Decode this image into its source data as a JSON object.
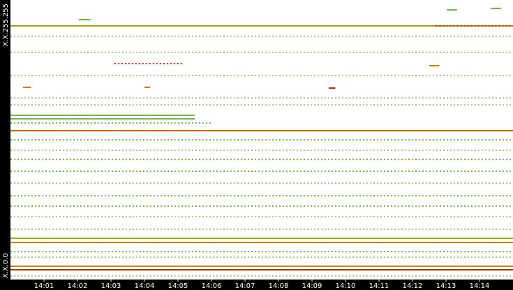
{
  "chart_data": {
    "type": "segments",
    "xlim": [
      0,
      15
    ],
    "xticks": [
      {
        "value": 1,
        "label": "14:01"
      },
      {
        "value": 2,
        "label": "14:02"
      },
      {
        "value": 3,
        "label": "14:03"
      },
      {
        "value": 4,
        "label": "14:04"
      },
      {
        "value": 5,
        "label": "14:05"
      },
      {
        "value": 6,
        "label": "14:06"
      },
      {
        "value": 7,
        "label": "14:07"
      },
      {
        "value": 8,
        "label": "14:08"
      },
      {
        "value": 9,
        "label": "14:09"
      },
      {
        "value": 10,
        "label": "14:10"
      },
      {
        "value": 11,
        "label": "14:11"
      },
      {
        "value": 12,
        "label": "14:12"
      },
      {
        "value": 13,
        "label": "14:13"
      },
      {
        "value": 14,
        "label": "14:14"
      }
    ],
    "ylim": [
      0,
      65535
    ],
    "yticks": [
      {
        "value": 0,
        "label": "X.X.0.0"
      },
      {
        "value": 65535,
        "label": "X.X.255.255"
      }
    ],
    "segments": [
      {
        "y": 59473,
        "x": [
          0,
          15
        ],
        "color": "#a8a000",
        "style": "solid"
      },
      {
        "y": 59473,
        "x": [
          12.7,
          15
        ],
        "color": "#cc2200",
        "style": "dotted"
      },
      {
        "y": 50626,
        "x": [
          3.1,
          5.15
        ],
        "color": "#cc2200",
        "style": "dotted"
      },
      {
        "y": 34897,
        "x": [
          0,
          15
        ],
        "color": "#c86a00",
        "style": "solid"
      },
      {
        "y": 9666,
        "x": [
          0,
          15
        ],
        "color": "#8ab020",
        "style": "solid"
      },
      {
        "y": 8683,
        "x": [
          0,
          15
        ],
        "color": "#d08000",
        "style": "solid"
      },
      {
        "y": 3113,
        "x": [
          0,
          15
        ],
        "color": "#d08000",
        "style": "solid"
      },
      {
        "y": 2294,
        "x": [
          0,
          15
        ],
        "color": "#b83000",
        "style": "solid"
      },
      {
        "y": 38502,
        "x": [
          0,
          5.5
        ],
        "color": "#6abf40",
        "style": "solid"
      },
      {
        "y": 37683,
        "x": [
          0,
          5.5
        ],
        "color": "#6abf40",
        "style": "solid"
      },
      {
        "y": 36700,
        "x": [
          0,
          6
        ],
        "color": "#6abf40",
        "style": "dotted"
      },
      {
        "y": 53247,
        "x": [
          0,
          15
        ],
        "color": "#9ed07a",
        "style": "dotted"
      },
      {
        "y": 63241,
        "x": [
          13.02,
          13.33
        ],
        "color": "#6abf40",
        "style": "solid"
      },
      {
        "y": 63569,
        "x": [
          14.33,
          14.65
        ],
        "color": "#6abf40",
        "style": "solid"
      },
      {
        "y": 60948,
        "x": [
          2.04,
          2.4
        ],
        "color": "#6abf40",
        "style": "solid"
      },
      {
        "y": 45055,
        "x": [
          0.37,
          0.62
        ],
        "color": "#d08000",
        "style": "solid"
      },
      {
        "y": 45055,
        "x": [
          4,
          4.17
        ],
        "color": "#d08000",
        "style": "solid"
      },
      {
        "y": 50134,
        "x": [
          12.5,
          12.8
        ],
        "color": "#d08000",
        "style": "solid"
      },
      {
        "y": 44891,
        "x": [
          9.5,
          9.7
        ],
        "color": "#cc2200",
        "style": "solid"
      },
      {
        "y": 57016,
        "x": [
          0,
          15
        ],
        "color": "#9ed07a",
        "style": "dotted"
      },
      {
        "y": 47841,
        "x": [
          0,
          15
        ],
        "color": "#9ed07a",
        "style": "dotted"
      },
      {
        "y": 42598,
        "x": [
          0,
          15
        ],
        "color": "#9ed07a",
        "style": "dotted"
      },
      {
        "y": 40960,
        "x": [
          0,
          15
        ],
        "color": "#9ed07a",
        "style": "dotted"
      },
      {
        "y": 32768,
        "x": [
          0,
          15
        ],
        "color": "#6abf40",
        "style": "dotted"
      },
      {
        "y": 30310,
        "x": [
          0,
          15
        ],
        "color": "#9ed07a",
        "style": "dotted"
      },
      {
        "y": 28180,
        "x": [
          0,
          15
        ],
        "color": "#6abf40",
        "style": "dotted"
      },
      {
        "y": 25395,
        "x": [
          0,
          15
        ],
        "color": "#6abf40",
        "style": "dotted"
      },
      {
        "y": 22610,
        "x": [
          0,
          15
        ],
        "color": "#9ed07a",
        "style": "dotted"
      },
      {
        "y": 19661,
        "x": [
          0,
          15
        ],
        "color": "#6abf40",
        "style": "dotted"
      },
      {
        "y": 17203,
        "x": [
          0,
          15
        ],
        "color": "#6abf40",
        "style": "dotted"
      },
      {
        "y": 14746,
        "x": [
          0,
          15
        ],
        "color": "#9ed07a",
        "style": "dotted"
      },
      {
        "y": 11796,
        "x": [
          0,
          15
        ],
        "color": "#9ed07a",
        "style": "dotted"
      },
      {
        "y": 6554,
        "x": [
          0,
          15
        ],
        "color": "#6abf40",
        "style": "dotted"
      },
      {
        "y": 5243,
        "x": [
          0,
          15
        ],
        "color": "#9ed07a",
        "style": "dotted"
      },
      {
        "y": 819,
        "x": [
          0,
          15
        ],
        "color": "#9ed07a",
        "style": "dotted"
      }
    ]
  }
}
